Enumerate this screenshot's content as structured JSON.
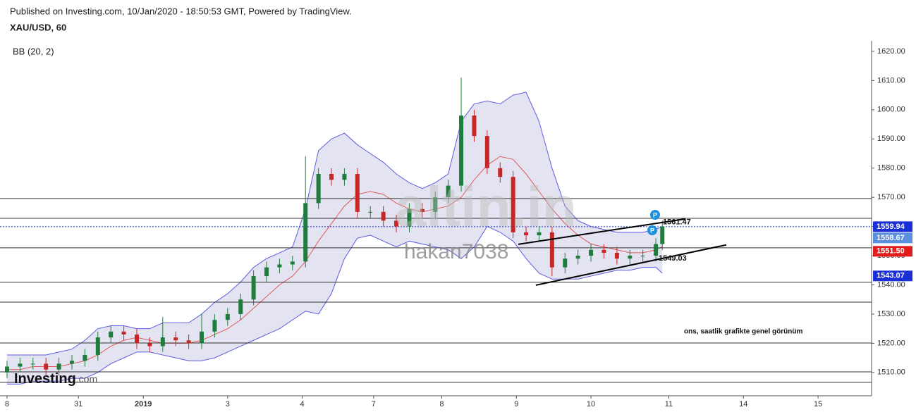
{
  "header": {
    "published": "Published on Investing.com, 10/Jan/2020 - 18:50:53 GMT, Powered by TradingView.",
    "symbol": "XAU/USD, 60"
  },
  "watermarks": {
    "logo": "altin.in",
    "user": "hakan7038"
  },
  "brand": {
    "name": "Investing",
    "suffix": ".com"
  },
  "chart_data": {
    "type": "candlestick",
    "x": [
      0,
      4,
      8,
      12,
      16,
      20,
      24,
      28,
      32,
      36,
      40,
      44,
      48,
      52,
      56,
      60,
      64,
      68,
      72,
      76,
      80,
      84,
      88,
      92,
      96,
      100,
      104,
      108,
      112,
      116,
      120,
      124,
      128,
      132,
      136,
      140,
      144,
      148,
      152,
      156,
      160,
      164,
      168,
      172,
      176,
      180,
      184,
      188,
      192,
      196,
      200,
      202
    ],
    "open": [
      1510,
      1512,
      1513,
      1513,
      1511,
      1513,
      1514,
      1516,
      1522,
      1524,
      1523,
      1520,
      1519,
      1522,
      1521,
      1520,
      1524,
      1528,
      1530,
      1535,
      1543,
      1546,
      1547,
      1548,
      1568,
      1578,
      1576,
      1578,
      1565,
      1565,
      1562,
      1560,
      1566,
      1565,
      1570,
      1574,
      1598,
      1591,
      1580,
      1577,
      1558,
      1557,
      1558,
      1546,
      1549,
      1550,
      1552,
      1551,
      1549,
      1550,
      1550,
      1554
    ],
    "high": [
      1514,
      1515,
      1515,
      1515,
      1515,
      1516,
      1518,
      1524,
      1526,
      1526,
      1525,
      1522,
      1529,
      1524,
      1523,
      1530,
      1530,
      1532,
      1537,
      1545,
      1548,
      1549,
      1550,
      1584,
      1580,
      1580,
      1580,
      1580,
      1567,
      1567,
      1564,
      1568,
      1568,
      1572,
      1576,
      1611,
      1600,
      1593,
      1582,
      1579,
      1560,
      1560,
      1560,
      1551,
      1552,
      1554,
      1554,
      1553,
      1552,
      1552,
      1556,
      1562
    ],
    "low": [
      1508,
      1510,
      1511,
      1509,
      1509,
      1511,
      1512,
      1514,
      1520,
      1521,
      1518,
      1517,
      1517,
      1519,
      1518,
      1518,
      1522,
      1526,
      1528,
      1533,
      1541,
      1544,
      1545,
      1546,
      1566,
      1574,
      1574,
      1563,
      1563,
      1560,
      1558,
      1558,
      1563,
      1563,
      1568,
      1572,
      1589,
      1578,
      1575,
      1556,
      1555,
      1555,
      1543,
      1544,
      1547,
      1548,
      1549,
      1547,
      1547,
      1548,
      1548,
      1552
    ],
    "close": [
      1512,
      1513,
      1513,
      1511,
      1513,
      1514,
      1516,
      1522,
      1524,
      1523,
      1520,
      1519,
      1522,
      1521,
      1520,
      1524,
      1528,
      1530,
      1535,
      1543,
      1546,
      1547,
      1548,
      1568,
      1578,
      1576,
      1578,
      1565,
      1565,
      1562,
      1560,
      1566,
      1565,
      1570,
      1574,
      1598,
      1591,
      1580,
      1577,
      1558,
      1557,
      1558,
      1546,
      1549,
      1550,
      1552,
      1551,
      1549,
      1550,
      1550,
      1554,
      1560
    ],
    "up_color": "#1e7d3c",
    "down_color": "#c62828",
    "bollinger": {
      "label": "BB (20, 2)",
      "band_color": "#5c5ce0",
      "fill": "#dcdcee",
      "middle_color": "#e05a5a",
      "upper": [
        1516,
        1516,
        1516,
        1516,
        1517,
        1518,
        1521,
        1525,
        1526,
        1526,
        1525,
        1525,
        1527,
        1527,
        1527,
        1530,
        1534,
        1537,
        1541,
        1546,
        1549,
        1551,
        1553,
        1566,
        1586,
        1590,
        1592,
        1588,
        1585,
        1582,
        1578,
        1575,
        1573,
        1575,
        1578,
        1596,
        1602,
        1603,
        1602,
        1605,
        1606,
        1596,
        1580,
        1567,
        1562,
        1560,
        1559,
        1558,
        1558,
        1558,
        1559,
        1560
      ],
      "middle": [
        1511,
        1511,
        1512,
        1512,
        1512,
        1513,
        1514,
        1516,
        1519,
        1521,
        1522,
        1521,
        1520,
        1520,
        1520,
        1521,
        1523,
        1525,
        1528,
        1532,
        1536,
        1540,
        1543,
        1548,
        1555,
        1561,
        1567,
        1571,
        1572,
        1571,
        1568,
        1566,
        1565,
        1566,
        1567,
        1570,
        1576,
        1581,
        1584,
        1583,
        1578,
        1572,
        1566,
        1561,
        1557,
        1554,
        1553,
        1552,
        1551,
        1551,
        1552,
        1553
      ],
      "lower": [
        1506,
        1506,
        1507,
        1507,
        1507,
        1508,
        1508,
        1510,
        1513,
        1515,
        1517,
        1517,
        1516,
        1515,
        1514,
        1514,
        1515,
        1517,
        1519,
        1521,
        1523,
        1525,
        1528,
        1531,
        1530,
        1537,
        1549,
        1556,
        1557,
        1555,
        1553,
        1555,
        1554,
        1553,
        1552,
        1549,
        1553,
        1560,
        1558,
        1555,
        1549,
        1544,
        1542,
        1542,
        1542,
        1543,
        1544,
        1545,
        1545,
        1546,
        1546,
        1544
      ]
    },
    "hlines": [
      1569.6,
      1562.8,
      1552.7,
      1540.9,
      1534.1,
      1520.1,
      1510.2,
      1506.6
    ],
    "trendlines": [
      {
        "x": [
          157.6,
          209.1
        ],
        "y": [
          1553.9,
          1562.6
        ]
      },
      {
        "x": [
          163,
          221.7
        ],
        "y": [
          1539.9,
          1553.7
        ]
      }
    ],
    "trend_labels": [
      1561.47,
      1549.03
    ],
    "note": "ons, saatlik grafikte genel görünüm",
    "price_labels": [
      {
        "value": 1559.94,
        "label": "1559.94",
        "color": "#1a2fd6"
      },
      {
        "value": 1558.67,
        "label": "1558.67",
        "color": "#5c8fe0"
      },
      {
        "value": 1551.5,
        "label": "1551.50",
        "color": "#e01c1c"
      },
      {
        "value": 1543.07,
        "label": "1543.07",
        "color": "#1a2fd6"
      }
    ],
    "xlim": [
      -2.17,
      266.5
    ],
    "xticks": [
      {
        "value": 0,
        "label": "8"
      },
      {
        "value": 22,
        "label": "31"
      },
      {
        "value": 42,
        "label": "2019"
      },
      {
        "value": 68,
        "label": "3"
      },
      {
        "value": 91,
        "label": "4"
      },
      {
        "value": 113,
        "label": "7"
      },
      {
        "value": 134,
        "label": "8"
      },
      {
        "value": 157,
        "label": "9"
      },
      {
        "value": 180,
        "label": "10"
      },
      {
        "value": 204,
        "label": "11"
      },
      {
        "value": 227,
        "label": "14"
      },
      {
        "value": 250,
        "label": "15"
      }
    ],
    "ylim": [
      1502,
      1623.6
    ],
    "yticks": [
      {
        "value": 1510,
        "label": "1510.00"
      },
      {
        "value": 1520,
        "label": "1520.00"
      },
      {
        "value": 1530,
        "label": "1530.00"
      },
      {
        "value": 1540,
        "label": "1540.00"
      },
      {
        "value": 1550,
        "label": "1550.00"
      },
      {
        "value": 1560,
        "label": "1560.00"
      },
      {
        "value": 1570,
        "label": "1570.00"
      },
      {
        "value": 1580,
        "label": "1580.00"
      },
      {
        "value": 1590,
        "label": "1590.00"
      },
      {
        "value": 1600,
        "label": "1600.00"
      },
      {
        "value": 1610,
        "label": "1610.00"
      },
      {
        "value": 1620,
        "label": "1620.00"
      }
    ]
  }
}
